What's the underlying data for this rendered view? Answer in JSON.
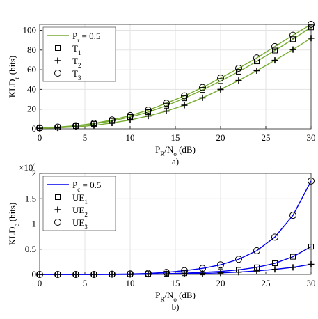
{
  "chart_data": [
    {
      "type": "line",
      "ylabel": [
        "KLD",
        "r",
        " (bits)"
      ],
      "xlabel": [
        "P",
        "R",
        "/N",
        "o",
        " (dB)"
      ],
      "caption": "a)",
      "line_label": [
        "P",
        "r",
        " = 0.5"
      ],
      "line_color": "#77ac30",
      "marker_color": "#000000",
      "x": [
        0,
        2,
        4,
        6,
        8,
        10,
        12,
        14,
        16,
        18,
        20,
        22,
        24,
        26,
        28,
        30
      ],
      "series": [
        {
          "name": [
            "T",
            "1"
          ],
          "marker": "square",
          "values": [
            0.8,
            1.5,
            2.8,
            5,
            8,
            12,
            17,
            23.5,
            31,
            39.5,
            48.5,
            58,
            68.5,
            79.5,
            91,
            103
          ]
        },
        {
          "name": [
            "T",
            "2"
          ],
          "marker": "plus",
          "values": [
            0.5,
            1,
            2,
            3.5,
            6,
            9,
            13,
            18,
            24,
            31.5,
            40,
            49,
            59,
            69.5,
            80.5,
            92
          ]
        },
        {
          "name": [
            "T",
            "3"
          ],
          "marker": "circle",
          "values": [
            1,
            1.8,
            3.2,
            5.5,
            9,
            13.5,
            19,
            26,
            33.5,
            42,
            51.5,
            61.5,
            72,
            83.5,
            95,
            106
          ]
        }
      ],
      "xlim": [
        0,
        30
      ],
      "xticks": [
        0,
        5,
        10,
        15,
        20,
        25,
        30
      ],
      "ylim": [
        0,
        106
      ],
      "yticks": [
        0,
        20,
        40,
        60,
        80,
        100
      ],
      "grid": true,
      "legend": "upper left"
    },
    {
      "type": "line",
      "ylabel": [
        "KLD",
        "c",
        " (bits)"
      ],
      "xlabel": [
        "P",
        "R",
        "/N",
        "o",
        " (dB)"
      ],
      "caption": "b)",
      "yscale_label": {
        "base": "×10",
        "exp": "4"
      },
      "line_label": [
        "P",
        "c",
        " = 0.5"
      ],
      "line_color": "#0000ee",
      "marker_color": "#000000",
      "x": [
        0,
        2,
        4,
        6,
        8,
        10,
        12,
        14,
        16,
        18,
        20,
        22,
        24,
        26,
        28,
        30
      ],
      "series": [
        {
          "name": [
            "UE",
            "1"
          ],
          "marker": "square",
          "values": [
            0,
            0,
            0,
            0,
            0,
            0.005,
            0.01,
            0.015,
            0.025,
            0.04,
            0.06,
            0.09,
            0.14,
            0.22,
            0.35,
            0.55
          ]
        },
        {
          "name": [
            "UE",
            "2"
          ],
          "marker": "plus",
          "values": [
            0,
            0,
            0,
            0,
            0,
            0,
            0.005,
            0.01,
            0.015,
            0.02,
            0.03,
            0.045,
            0.07,
            0.1,
            0.14,
            0.2
          ]
        },
        {
          "name": [
            "UE",
            "3"
          ],
          "marker": "circle",
          "values": [
            0,
            0,
            0,
            0,
            0.005,
            0.01,
            0.02,
            0.04,
            0.075,
            0.12,
            0.19,
            0.3,
            0.47,
            0.74,
            1.17,
            1.85
          ]
        }
      ],
      "xlim": [
        0,
        30
      ],
      "xticks": [
        0,
        5,
        10,
        15,
        20,
        25,
        30
      ],
      "ylim": [
        0,
        2
      ],
      "yticks": [
        0,
        0.5,
        1,
        1.5,
        2
      ],
      "grid": true,
      "legend": "upper left"
    }
  ]
}
